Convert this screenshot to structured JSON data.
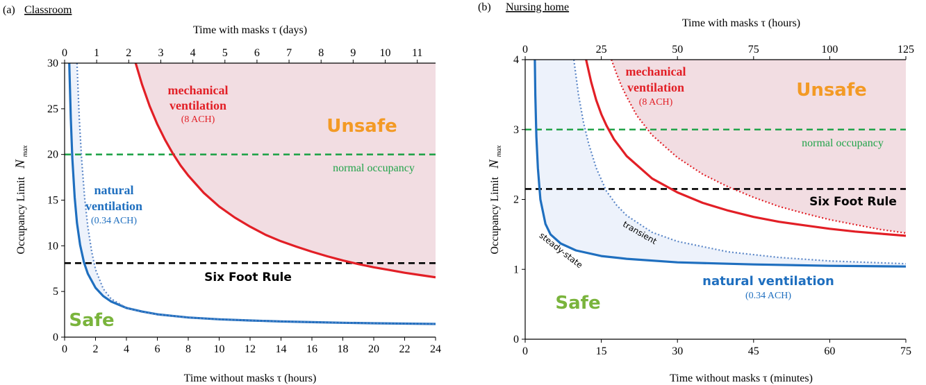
{
  "chart_data": [
    {
      "panel": "a",
      "panel_label": "(a)",
      "title": "Classroom",
      "type": "line",
      "xlabel": "Time without masks  τ  (hours)",
      "x2label": "Time with masks  τ  (days)",
      "ylabel": "Occupancy Limit",
      "ylabel_symbol": "N",
      "ylabel_subscript": "max",
      "xlim": [
        0,
        24
      ],
      "x2lim": [
        0,
        11.57
      ],
      "ylim": [
        0,
        30
      ],
      "xticks": [
        0,
        2,
        4,
        6,
        8,
        10,
        12,
        14,
        16,
        18,
        20,
        22,
        24
      ],
      "x2ticks": [
        0,
        1,
        2,
        3,
        4,
        5,
        6,
        7,
        8,
        9,
        10,
        11
      ],
      "yticks": [
        0,
        5,
        10,
        15,
        20,
        25,
        30
      ],
      "series": [
        {
          "name": "natural ventilation",
          "style": "solid",
          "color": "#1f6fbf",
          "x": [
            0.3,
            0.4,
            0.5,
            0.65,
            0.8,
            1.0,
            1.25,
            1.5,
            2,
            2.5,
            3,
            4,
            5,
            6,
            8,
            10,
            12,
            14,
            16,
            18,
            20,
            22,
            24
          ],
          "y": [
            30,
            24,
            19.6,
            15.3,
            12.5,
            10.1,
            8.2,
            6.95,
            5.4,
            4.5,
            3.9,
            3.2,
            2.8,
            2.5,
            2.15,
            1.95,
            1.82,
            1.72,
            1.64,
            1.57,
            1.52,
            1.48,
            1.44
          ]
        },
        {
          "name": "",
          "style": "dotted",
          "color": "#5a86c7",
          "x": [
            0.8,
            0.95,
            1.1,
            1.3,
            1.5,
            1.75,
            2.0,
            2.5,
            3,
            4,
            5,
            6,
            8,
            10,
            12,
            16,
            20,
            24
          ],
          "y": [
            30,
            24,
            19.5,
            15.2,
            12.1,
            9.4,
            7.4,
            5.3,
            4.2,
            3.2,
            2.75,
            2.48,
            2.14,
            1.95,
            1.82,
            1.64,
            1.52,
            1.44
          ]
        },
        {
          "name": "mechanical ventilation",
          "style": "solid",
          "color": "#e21f26",
          "x": [
            4.6,
            5,
            5.5,
            6,
            6.5,
            7,
            7.5,
            8,
            9,
            10,
            11,
            12,
            13,
            14,
            15,
            16,
            17,
            18,
            19,
            20,
            21,
            22,
            23,
            24
          ],
          "y": [
            30,
            27.7,
            25.3,
            23.3,
            21.6,
            20.1,
            18.8,
            17.7,
            15.8,
            14.3,
            13.1,
            12.1,
            11.2,
            10.5,
            9.9,
            9.35,
            8.85,
            8.4,
            8.0,
            7.65,
            7.35,
            7.05,
            6.8,
            6.55
          ]
        }
      ],
      "normal_occupancy": 20,
      "six_foot_rule": 8.1,
      "annotations": {
        "mech_line1": "mechanical",
        "mech_line2": "ventilation",
        "mech_ach": "(8 ACH)",
        "nat_line1": "natural",
        "nat_line2": "ventilation",
        "nat_ach": "(0.34 ACH)",
        "normal": "normal occupancy",
        "six_foot": "Six Foot Rule",
        "unsafe": "Unsafe",
        "safe": "Safe"
      }
    },
    {
      "panel": "b",
      "panel_label": "(b)",
      "title": "Nursing home",
      "type": "line",
      "xlabel": "Time without masks  τ  (minutes)",
      "x2label": "Time with masks  τ  (hours)",
      "ylabel": "Occupancy Limit",
      "ylabel_symbol": "N",
      "ylabel_subscript": "max",
      "xlim": [
        0,
        75
      ],
      "x2lim": [
        0,
        125
      ],
      "ylim": [
        0,
        4
      ],
      "xticks": [
        0,
        15,
        30,
        45,
        60,
        75
      ],
      "x2ticks": [
        0,
        25,
        50,
        75,
        100,
        125
      ],
      "yticks": [
        0,
        1,
        2,
        3,
        4
      ],
      "series": [
        {
          "name": "natural ventilation",
          "style": "solid",
          "color": "#1f6fbf",
          "x": [
            1.9,
            2.0,
            2.2,
            2.5,
            3.0,
            4,
            5,
            7,
            10,
            15,
            20,
            30,
            45,
            60,
            75
          ],
          "y": [
            4,
            3.5,
            2.9,
            2.45,
            2.0,
            1.65,
            1.5,
            1.37,
            1.27,
            1.19,
            1.15,
            1.1,
            1.07,
            1.05,
            1.04
          ]
        },
        {
          "name": "transient",
          "style": "dotted",
          "color": "#5a86c7",
          "x": [
            9.6,
            10.5,
            11.5,
            12.5,
            14,
            16,
            18,
            20,
            25,
            30,
            40,
            50,
            60,
            75
          ],
          "y": [
            4,
            3.5,
            3.1,
            2.8,
            2.45,
            2.12,
            1.92,
            1.77,
            1.53,
            1.4,
            1.25,
            1.17,
            1.12,
            1.08
          ]
        },
        {
          "name": "mechanical ventilation",
          "style": "solid",
          "color": "#e21f26",
          "x": [
            12.0,
            13,
            14,
            15,
            16,
            17.5,
            20,
            25,
            30,
            35,
            40,
            45,
            50,
            55,
            60,
            65,
            70,
            75
          ],
          "y": [
            4,
            3.68,
            3.42,
            3.22,
            3.06,
            2.86,
            2.62,
            2.3,
            2.1,
            1.95,
            1.84,
            1.75,
            1.68,
            1.63,
            1.58,
            1.54,
            1.51,
            1.48
          ]
        },
        {
          "name": "",
          "style": "dotted",
          "color": "#e21f26",
          "x": [
            17.0,
            18,
            19,
            20,
            22,
            25,
            30,
            35,
            40,
            45,
            50,
            55,
            60,
            65,
            70,
            75
          ],
          "y": [
            4,
            3.8,
            3.62,
            3.47,
            3.2,
            2.92,
            2.6,
            2.36,
            2.18,
            2.03,
            1.9,
            1.8,
            1.71,
            1.64,
            1.57,
            1.52
          ]
        }
      ],
      "normal_occupancy": 3,
      "six_foot_rule": 2.15,
      "annotations": {
        "mech_line1": "mechanical",
        "mech_line2": "ventilation",
        "mech_ach": "(8 ACH)",
        "nat_line1": "natural ventilation",
        "nat_ach": "(0.34 ACH)",
        "normal": "normal occupancy",
        "six_foot": "Six Foot Rule",
        "unsafe": "Unsafe",
        "safe": "Safe",
        "steady": "steady-state",
        "transient": "transient"
      }
    }
  ],
  "colors": {
    "unsafe_fill": "#f2dde2",
    "safe_band_fill": "#edf2fb",
    "natural": "#1f6fbf",
    "mechanical": "#e21f26",
    "normal_line": "#22a34a",
    "six_foot_line": "#000000",
    "unsafe_text": "#f39a25",
    "safe_text": "#7ab43c"
  }
}
